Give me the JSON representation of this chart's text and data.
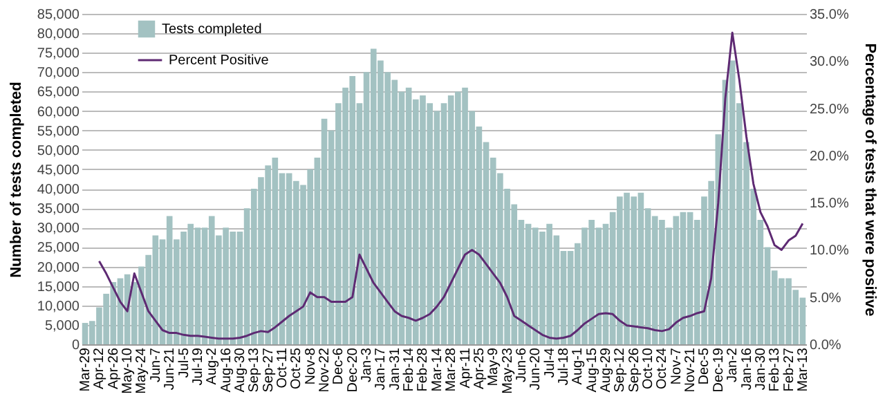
{
  "chart_data": {
    "type": "bar",
    "ylabel": "Number of tests completed",
    "y2label": "Percentage of tests that were positive",
    "categories": [
      "Mar-29",
      null,
      "Apr-12",
      null,
      "Apr-26",
      null,
      "May-10",
      null,
      "May-24",
      null,
      "Jun-7",
      null,
      "Jun-21",
      null,
      "Jul-5",
      null,
      "Jul-19",
      null,
      "Aug-2",
      null,
      "Aug-16",
      null,
      "Aug-30",
      null,
      "Sep-13",
      null,
      "Sep-27",
      null,
      "Oct-11",
      null,
      "Oct-25",
      null,
      "Nov-8",
      null,
      "Nov-22",
      null,
      "Dec-6",
      null,
      "Dec-20",
      null,
      "Jan-3",
      null,
      "Jan-17",
      null,
      "Jan-31",
      null,
      "Feb-14",
      null,
      "Feb-28",
      null,
      "Mar-14",
      null,
      "Mar-28",
      null,
      "Apr-11",
      null,
      "Apr-25",
      null,
      "May-9",
      null,
      "May-23",
      null,
      "Jun-6",
      null,
      "Jun-20",
      null,
      "Jul-4",
      null,
      "Jul-18",
      null,
      "Aug-1",
      null,
      "Aug-15",
      null,
      "Aug-29",
      null,
      "Sep-12",
      null,
      "Sep-26",
      null,
      "Oct-10",
      null,
      "Oct-24",
      null,
      "Nov-7",
      null,
      "Nov-21",
      null,
      "Dec-5",
      null,
      "Dec-19",
      null,
      "Jan-2",
      null,
      "Jan-16",
      null,
      "Jan-30",
      null,
      "Feb-13",
      null,
      "Feb-27",
      null,
      "Mar-13"
    ],
    "series": [
      {
        "name": "Tests completed",
        "color": "#a3c2c2",
        "values": [
          5500,
          6000,
          9500,
          13000,
          16000,
          17000,
          18000,
          16000,
          20000,
          23000,
          28000,
          27000,
          33000,
          27000,
          29000,
          31000,
          30000,
          30000,
          33000,
          28000,
          30000,
          29000,
          29000,
          35000,
          40000,
          43000,
          46000,
          48000,
          44000,
          44000,
          42000,
          41000,
          45000,
          48000,
          58000,
          55000,
          62000,
          66000,
          69000,
          62000,
          70000,
          76000,
          73000,
          70000,
          68000,
          65000,
          66000,
          63000,
          64000,
          62000,
          60000,
          62000,
          64000,
          65000,
          66000,
          60000,
          56000,
          52000,
          48000,
          44000,
          40000,
          36000,
          32000,
          31000,
          30000,
          29000,
          31000,
          28000,
          24000,
          24000,
          26000,
          30000,
          32000,
          30000,
          31000,
          34000,
          38000,
          39000,
          38000,
          39000,
          35000,
          33000,
          32000,
          30000,
          33000,
          34000,
          34000,
          32000,
          38000,
          42000,
          54000,
          68000,
          73000,
          62000,
          52000,
          40000,
          32000,
          25000,
          19000,
          17000,
          17000,
          14000,
          12000
        ]
      },
      {
        "name": "Percent Positive",
        "type": "line",
        "axis": "y2",
        "color": "#5e2a73",
        "values": [
          null,
          null,
          8.8,
          7.5,
          6.0,
          4.5,
          3.5,
          7.5,
          5.5,
          3.5,
          2.5,
          1.5,
          1.2,
          1.2,
          1.0,
          0.9,
          0.9,
          0.8,
          0.7,
          0.6,
          0.6,
          0.6,
          0.7,
          0.9,
          1.2,
          1.4,
          1.3,
          1.8,
          2.4,
          3.0,
          3.5,
          4.0,
          5.5,
          5.0,
          5.0,
          4.5,
          4.5,
          4.5,
          5.0,
          9.5,
          8.0,
          6.5,
          5.5,
          4.5,
          3.5,
          3.0,
          2.8,
          2.5,
          2.8,
          3.2,
          4.0,
          5.0,
          6.5,
          8.0,
          9.5,
          10.0,
          9.5,
          8.5,
          7.5,
          6.5,
          5.0,
          3.0,
          2.5,
          2.0,
          1.5,
          1.0,
          0.7,
          0.6,
          0.7,
          0.9,
          1.5,
          2.2,
          2.7,
          3.2,
          3.3,
          3.2,
          2.5,
          2.0,
          1.9,
          1.8,
          1.7,
          1.5,
          1.4,
          1.6,
          2.3,
          2.8,
          3.0,
          3.3,
          3.5,
          7.0,
          15.0,
          26.0,
          33.0,
          28.0,
          22.0,
          17.0,
          14.0,
          12.5,
          10.5,
          10.0,
          11.0,
          11.5,
          12.8
        ]
      }
    ],
    "ylim": [
      0,
      85000
    ],
    "yticks": [
      {
        "value": 0,
        "label": "0"
      },
      {
        "value": 5000,
        "label": "5,000"
      },
      {
        "value": 10000,
        "label": "10,000"
      },
      {
        "value": 15000,
        "label": "15,000"
      },
      {
        "value": 20000,
        "label": "20,000"
      },
      {
        "value": 25000,
        "label": "25,000"
      },
      {
        "value": 30000,
        "label": "30,000"
      },
      {
        "value": 35000,
        "label": "35,000"
      },
      {
        "value": 40000,
        "label": "40,000"
      },
      {
        "value": 45000,
        "label": "45,000"
      },
      {
        "value": 50000,
        "label": "50,000"
      },
      {
        "value": 55000,
        "label": "55,000"
      },
      {
        "value": 60000,
        "label": "60,000"
      },
      {
        "value": 65000,
        "label": "65,000"
      },
      {
        "value": 70000,
        "label": "70,000"
      },
      {
        "value": 75000,
        "label": "75,000"
      },
      {
        "value": 80000,
        "label": "80,000"
      },
      {
        "value": 85000,
        "label": "85,000"
      }
    ],
    "y2lim": [
      0,
      35
    ],
    "y2ticks": [
      {
        "value": 0,
        "label": "0.0%"
      },
      {
        "value": 5,
        "label": "5.0%"
      },
      {
        "value": 10,
        "label": "10.0%"
      },
      {
        "value": 15,
        "label": "15.0%"
      },
      {
        "value": 20,
        "label": "20.0%"
      },
      {
        "value": 25,
        "label": "25.0%"
      },
      {
        "value": 30,
        "label": "30.0%"
      },
      {
        "value": 35,
        "label": "35.0%"
      }
    ],
    "grid": "y",
    "legend": "top left"
  }
}
